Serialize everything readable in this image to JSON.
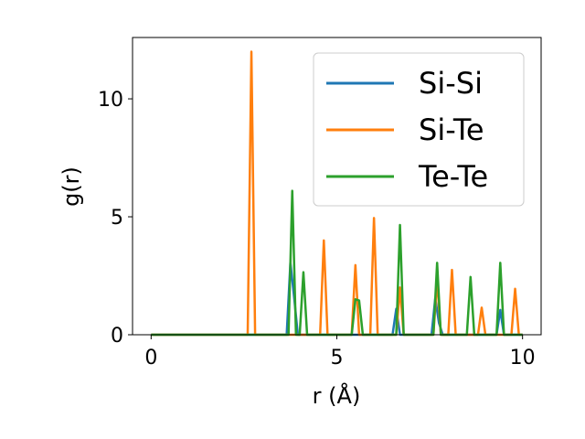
{
  "chart_data": {
    "type": "line",
    "title": "",
    "xlabel": "r (Å)",
    "ylabel": "g(r)",
    "xlim": [
      -0.5,
      10.5
    ],
    "ylim": [
      0,
      12.6
    ],
    "xticks": [
      0,
      5,
      10
    ],
    "yticks": [
      0,
      5,
      10
    ],
    "grid": false,
    "legend_position": "top-right",
    "series": [
      {
        "name": "Si-Si",
        "color": "#1f77b4",
        "x": [
          0,
          3.65,
          3.75,
          3.85,
          3.95,
          6.5,
          6.6,
          6.7,
          7.55,
          7.65,
          7.75,
          7.85,
          9.3,
          9.4,
          9.5,
          10.0
        ],
        "y": [
          0,
          0,
          3.05,
          1.6,
          0,
          0,
          1.1,
          0,
          0,
          1.55,
          0.5,
          0,
          0,
          1.05,
          0,
          0
        ]
      },
      {
        "name": "Si-Te",
        "color": "#ff7f0e",
        "x": [
          0,
          2.6,
          2.7,
          2.8,
          4.55,
          4.65,
          4.75,
          5.4,
          5.5,
          5.6,
          5.9,
          6.0,
          6.1,
          6.6,
          6.7,
          6.8,
          7.6,
          7.7,
          7.8,
          8.0,
          8.1,
          8.2,
          8.8,
          8.9,
          9.0,
          9.7,
          9.8,
          9.9,
          10.0
        ],
        "y": [
          0,
          0,
          12.0,
          0,
          0,
          4.0,
          0,
          0,
          2.95,
          0,
          0,
          4.95,
          0,
          0,
          2.0,
          0,
          0,
          2.35,
          0,
          0,
          2.75,
          0,
          0,
          1.15,
          0,
          0,
          1.95,
          0,
          0
        ]
      },
      {
        "name": "Te-Te",
        "color": "#2ca02c",
        "x": [
          0,
          3.7,
          3.8,
          3.9,
          4.0,
          4.1,
          4.2,
          5.4,
          5.5,
          5.6,
          5.7,
          6.6,
          6.7,
          6.8,
          7.6,
          7.7,
          7.8,
          8.5,
          8.6,
          8.7,
          9.3,
          9.4,
          9.5,
          10.0
        ],
        "y": [
          0,
          0,
          6.1,
          0,
          0,
          2.65,
          0,
          0,
          1.5,
          1.45,
          0,
          0,
          4.65,
          0,
          0,
          3.05,
          0,
          0,
          2.45,
          0,
          0,
          3.05,
          0,
          0
        ]
      }
    ]
  }
}
